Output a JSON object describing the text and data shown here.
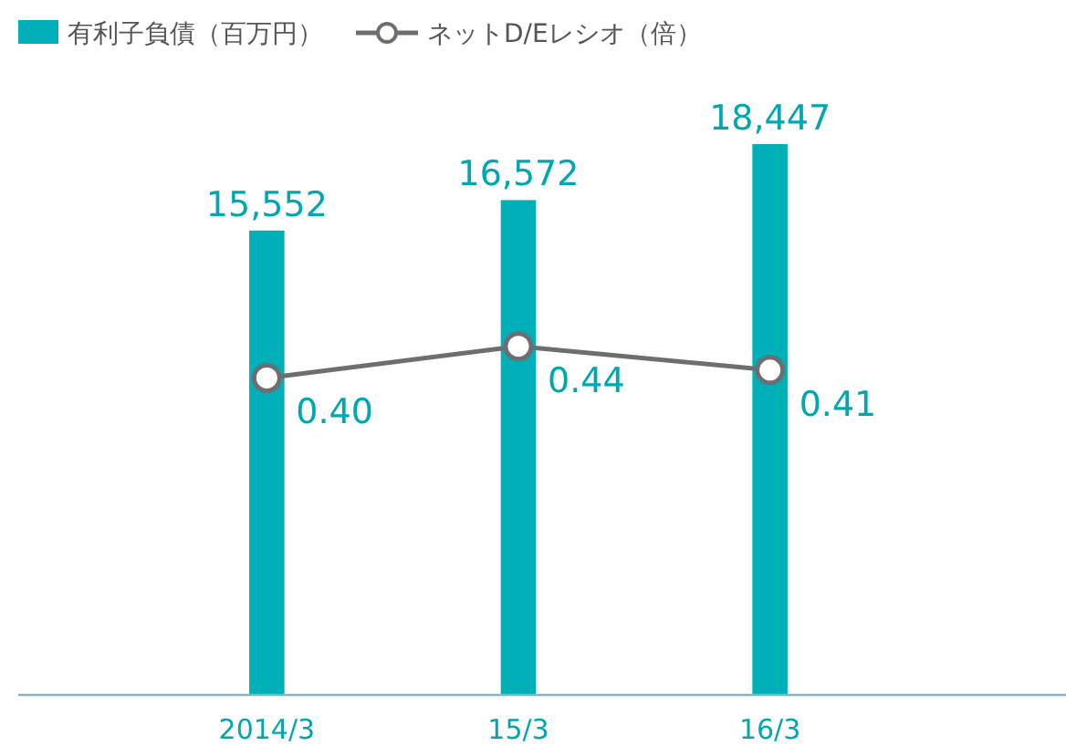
{
  "chart_data": {
    "type": "bar",
    "categories": [
      "2014/3",
      "15/3",
      "16/3"
    ],
    "series": [
      {
        "name": "有利子負債（百万円）",
        "color": "#00b0b9",
        "values": [
          15552,
          16572,
          18447
        ],
        "value_labels": [
          "15,552",
          "16,572",
          "18,447"
        ]
      },
      {
        "name": "ネットD/Eレシオ（倍）",
        "type": "line",
        "axis": "y2",
        "color": "#6d6e71",
        "values": [
          0.4,
          0.44,
          0.41
        ],
        "value_labels": [
          "0.40",
          "0.44",
          "0.41"
        ]
      }
    ],
    "legend": "top left",
    "marker": "circle",
    "line_style": "solid"
  }
}
